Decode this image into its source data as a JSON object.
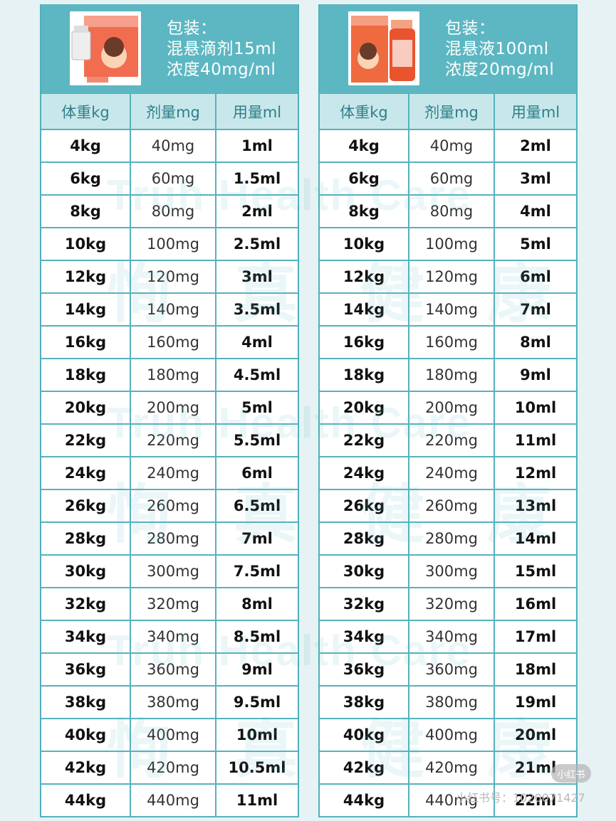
{
  "panels": [
    {
      "package_title": "包装：",
      "package_form": "混悬滴剂15ml",
      "concentration": "浓度40mg/ml",
      "columns": [
        "体重kg",
        "剂量mg",
        "用量ml"
      ],
      "rows": [
        [
          "4kg",
          "40mg",
          "1ml"
        ],
        [
          "6kg",
          "60mg",
          "1.5ml"
        ],
        [
          "8kg",
          "80mg",
          "2ml"
        ],
        [
          "10kg",
          "100mg",
          "2.5ml"
        ],
        [
          "12kg",
          "120mg",
          "3ml"
        ],
        [
          "14kg",
          "140mg",
          "3.5ml"
        ],
        [
          "16kg",
          "160mg",
          "4ml"
        ],
        [
          "18kg",
          "180mg",
          "4.5ml"
        ],
        [
          "20kg",
          "200mg",
          "5ml"
        ],
        [
          "22kg",
          "220mg",
          "5.5ml"
        ],
        [
          "24kg",
          "240mg",
          "6ml"
        ],
        [
          "26kg",
          "260mg",
          "6.5ml"
        ],
        [
          "28kg",
          "280mg",
          "7ml"
        ],
        [
          "30kg",
          "300mg",
          "7.5ml"
        ],
        [
          "32kg",
          "320mg",
          "8ml"
        ],
        [
          "34kg",
          "340mg",
          "8.5ml"
        ],
        [
          "36kg",
          "360mg",
          "9ml"
        ],
        [
          "38kg",
          "380mg",
          "9.5ml"
        ],
        [
          "40kg",
          "400mg",
          "10ml"
        ],
        [
          "42kg",
          "420mg",
          "10.5ml"
        ],
        [
          "44kg",
          "440mg",
          "11ml"
        ]
      ]
    },
    {
      "package_title": "包装：",
      "package_form": "混悬液100ml",
      "concentration": "浓度20mg/ml",
      "columns": [
        "体重kg",
        "剂量mg",
        "用量ml"
      ],
      "rows": [
        [
          "4kg",
          "40mg",
          "2ml"
        ],
        [
          "6kg",
          "60mg",
          "3ml"
        ],
        [
          "8kg",
          "80mg",
          "4ml"
        ],
        [
          "10kg",
          "100mg",
          "5ml"
        ],
        [
          "12kg",
          "120mg",
          "6ml"
        ],
        [
          "14kg",
          "140mg",
          "7ml"
        ],
        [
          "16kg",
          "160mg",
          "8ml"
        ],
        [
          "18kg",
          "180mg",
          "9ml"
        ],
        [
          "20kg",
          "200mg",
          "10ml"
        ],
        [
          "22kg",
          "220mg",
          "11ml"
        ],
        [
          "24kg",
          "240mg",
          "12ml"
        ],
        [
          "26kg",
          "260mg",
          "13ml"
        ],
        [
          "28kg",
          "280mg",
          "14ml"
        ],
        [
          "30kg",
          "300mg",
          "15ml"
        ],
        [
          "32kg",
          "320mg",
          "16ml"
        ],
        [
          "34kg",
          "340mg",
          "17ml"
        ],
        [
          "36kg",
          "360mg",
          "18ml"
        ],
        [
          "38kg",
          "380mg",
          "19ml"
        ],
        [
          "40kg",
          "400mg",
          "20ml"
        ],
        [
          "42kg",
          "420mg",
          "21ml"
        ],
        [
          "44kg",
          "440mg",
          "22ml"
        ]
      ]
    }
  ],
  "watermark": {
    "en": "Truh Health Care",
    "cn": "恂真健康"
  },
  "xhs": {
    "badge": "小红书",
    "id_text": "小红书号：1020071427"
  },
  "colors": {
    "header_teal": "#5cb7c2",
    "grid_line": "#56b2bd",
    "column_header_bg": "#c8e7ea",
    "background": "#e6f2f3"
  }
}
